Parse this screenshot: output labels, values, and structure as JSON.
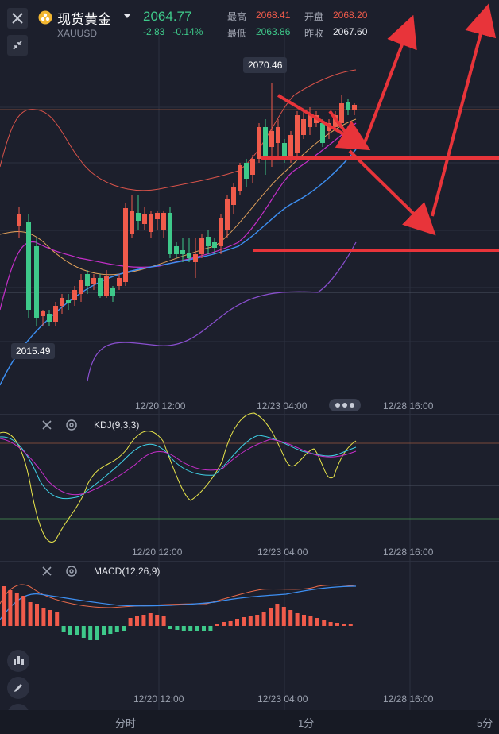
{
  "header": {
    "name": "现货黄金",
    "symbol": "XAUUSD",
    "price": "2064.77",
    "change": "-2.83",
    "change_pct": "-0.14%",
    "high_label": "最高",
    "high": "2068.41",
    "open_label": "开盘",
    "open": "2068.20",
    "low_label": "最低",
    "low": "2063.86",
    "prev_label": "昨收",
    "prev": "2067.60",
    "colors": {
      "up": "#f05b4b",
      "down": "#3ec98a",
      "text": "#e6e8ee"
    }
  },
  "main_chart": {
    "max_label": "2070.46",
    "min_label": "2015.49",
    "x_labels": [
      "12/20 12:00",
      "12/23 04:00",
      "12/28 16:00"
    ]
  },
  "kdj": {
    "label": "KDJ(9,3,3)",
    "x_labels": [
      "12/20 12:00",
      "12/23 04:00",
      "12/28 16:00"
    ]
  },
  "macd": {
    "label": "MACD(12,26,9)",
    "x_labels": [
      "12/20 12:00",
      "12/23 04:00",
      "12/28 16:00"
    ]
  },
  "timeframes": [
    "分时",
    "1分",
    "5分"
  ],
  "icons": [
    "close-icon",
    "collapse-icon",
    "gold-coin-icon",
    "chevron-down-icon",
    "settings-icon",
    "candlestick-icon",
    "pencil-icon",
    "indicator-icon"
  ]
}
